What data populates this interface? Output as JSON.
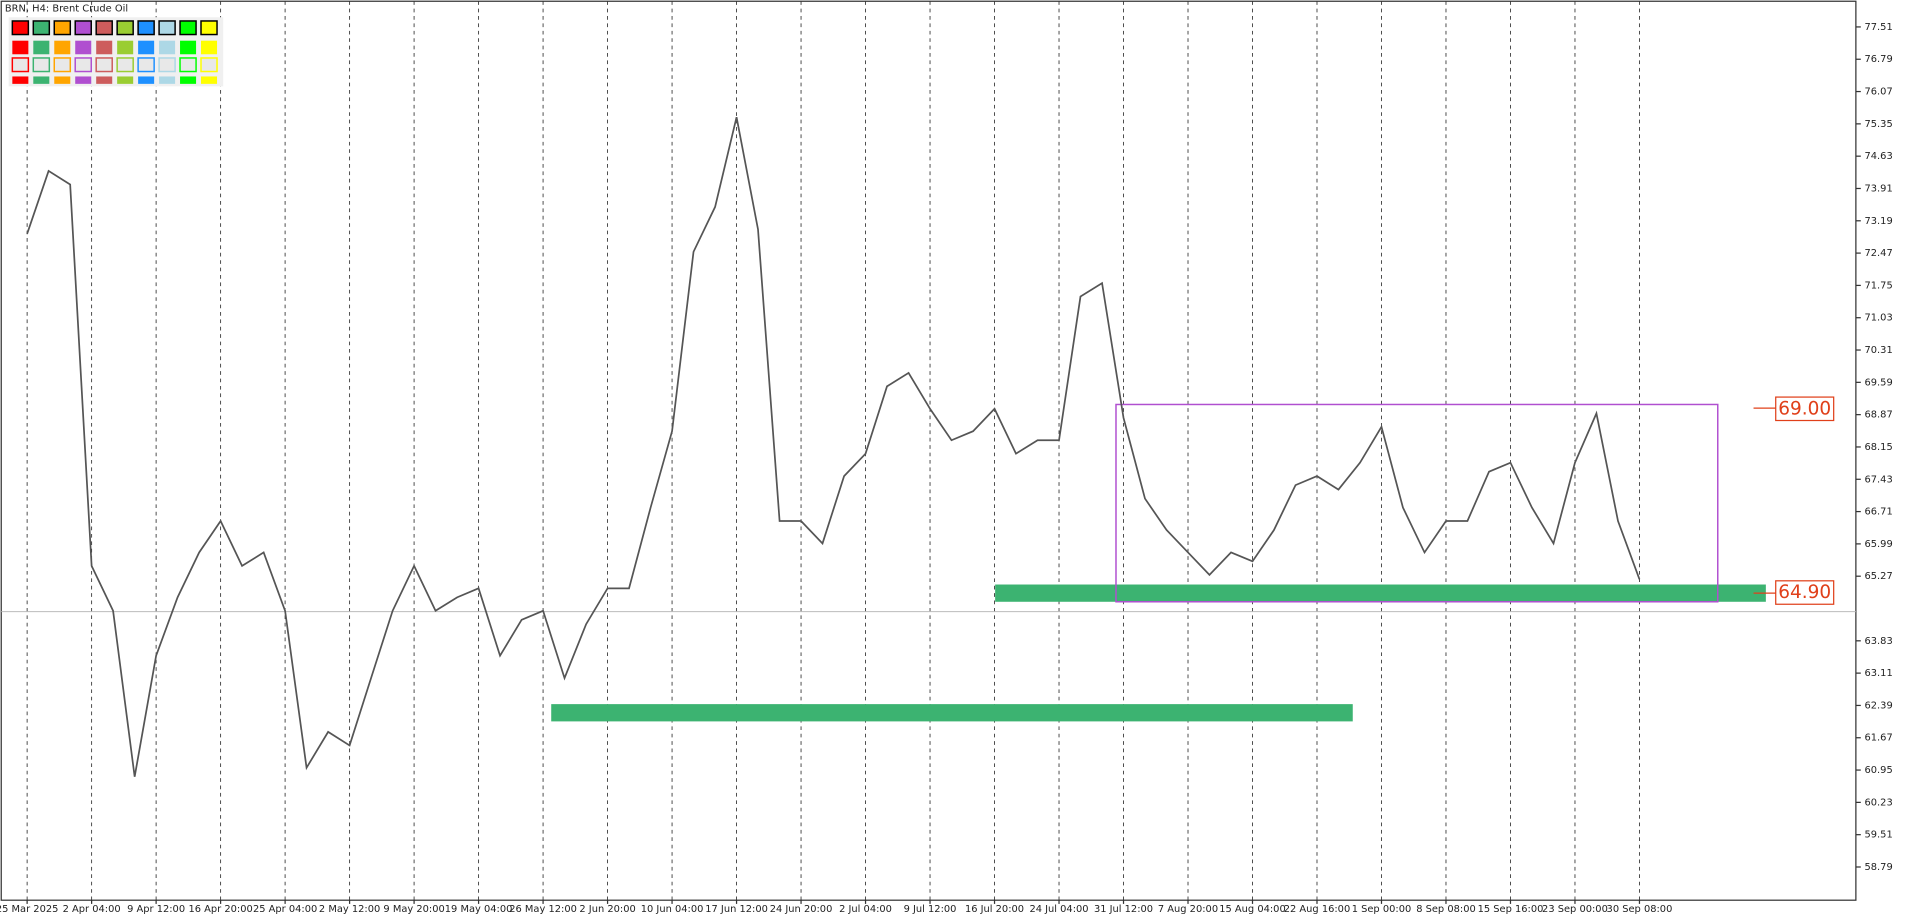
{
  "chart_data": {
    "type": "line",
    "title": "BRN, H4:  Brent Crude Oil",
    "categories": [
      "25 Mar 2025",
      null,
      null,
      "2 Apr 04:00",
      null,
      null,
      "9 Apr 12:00",
      null,
      null,
      "16 Apr 20:00",
      null,
      null,
      "25 Apr 04:00",
      null,
      null,
      "2 May 12:00",
      null,
      null,
      "9 May 20:00",
      null,
      null,
      "19 May 04:00",
      null,
      null,
      "26 May 12:00",
      null,
      null,
      "2 Jun 20:00",
      null,
      null,
      "10 Jun 04:00",
      null,
      null,
      "17 Jun 12:00",
      null,
      null,
      "24 Jun 20:00",
      null,
      null,
      "2 Jul 04:00",
      null,
      null,
      "9 Jul 12:00",
      null,
      null,
      "16 Jul 20:00",
      null,
      null,
      "24 Jul 04:00",
      null,
      null,
      "31 Jul 12:00",
      null,
      null,
      "7 Aug 20:00",
      null,
      null,
      "15 Aug 04:00",
      null,
      null,
      "22 Aug 16:00",
      null,
      null,
      "1 Sep 00:00",
      null,
      null,
      "8 Sep 08:00",
      null,
      null,
      "15 Sep 16:00",
      null,
      null,
      "23 Sep 00:00",
      null,
      null,
      "30 Sep 08:00"
    ],
    "values": [
      72.9,
      74.3,
      74.0,
      65.5,
      64.5,
      60.8,
      63.5,
      64.8,
      65.8,
      66.5,
      65.5,
      65.8,
      64.5,
      61.0,
      61.8,
      61.5,
      63.0,
      64.5,
      65.5,
      64.5,
      64.8,
      65.0,
      63.5,
      64.3,
      64.5,
      63.0,
      64.2,
      65.0,
      65.0,
      66.8,
      68.5,
      72.5,
      73.5,
      75.5,
      73.0,
      66.5,
      66.5,
      66.0,
      67.5,
      68.0,
      69.5,
      69.8,
      69.0,
      68.3,
      68.5,
      69.0,
      68.0,
      68.3,
      68.3,
      71.5,
      71.8,
      68.8,
      67.0,
      66.3,
      65.8,
      65.3,
      65.8,
      65.6,
      66.3,
      67.3,
      67.5,
      67.2,
      67.8,
      68.6,
      66.8,
      65.8,
      66.5,
      66.5,
      67.6,
      67.8,
      66.8,
      66.0,
      67.8,
      68.9,
      66.5,
      65.2
    ],
    "color": "#555555",
    "ylim": [
      58.05,
      78.11
    ],
    "yticks": [
      77.51,
      76.79,
      76.07,
      75.35,
      74.63,
      73.91,
      73.19,
      72.47,
      71.75,
      71.03,
      70.31,
      69.59,
      68.87,
      68.15,
      67.43,
      66.71,
      65.99,
      65.27,
      63.83,
      63.11,
      62.39,
      61.67,
      60.95,
      60.23,
      59.51,
      58.79
    ],
    "annotations": [
      "69.00",
      "64.90"
    ]
  }
}
